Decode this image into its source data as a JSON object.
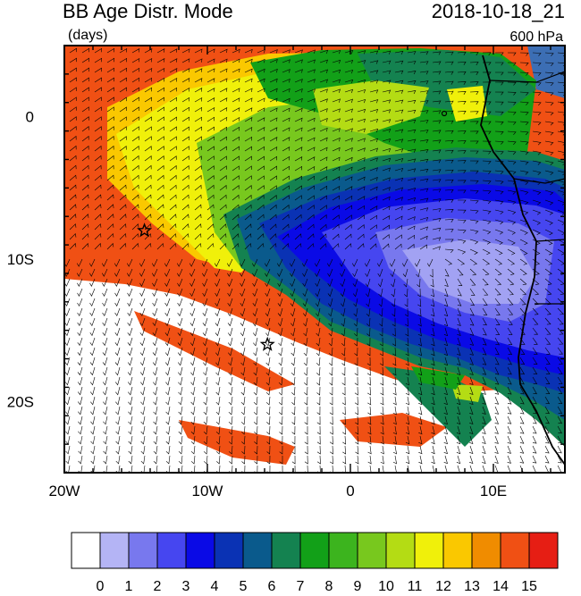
{
  "header": {
    "title": "BB Age Distr. Mode",
    "units": "(days)",
    "datetime": "2018-10-18_21",
    "level": "600 hPa"
  },
  "map": {
    "lon_range": [
      -20,
      15
    ],
    "lat_range": [
      -25,
      5
    ],
    "x_ticks": [
      {
        "lon": -20,
        "label": "20W"
      },
      {
        "lon": -10,
        "label": "10W"
      },
      {
        "lon": 0,
        "label": "0"
      },
      {
        "lon": 10,
        "label": "10E"
      }
    ],
    "y_ticks": [
      {
        "lat": 0,
        "label": "0"
      },
      {
        "lat": -10,
        "label": "10S"
      },
      {
        "lat": -20,
        "label": "20S"
      }
    ],
    "markers": [
      {
        "name": "star-marker-1",
        "lon": -14.4,
        "lat": -8.0
      },
      {
        "name": "star-marker-2",
        "lon": -5.8,
        "lat": -16.0
      }
    ]
  },
  "colorbar": {
    "labels": [
      "0",
      "1",
      "2",
      "3",
      "4",
      "5",
      "6",
      "7",
      "8",
      "9",
      "10",
      "11",
      "12",
      "13",
      "14",
      "15"
    ],
    "colors": [
      "#ffffff",
      "#b4b4f5",
      "#7878ee",
      "#4646f0",
      "#0a0ae6",
      "#0a32b4",
      "#0a5a8c",
      "#148250",
      "#12a018",
      "#3cb41e",
      "#78c81e",
      "#b4dc14",
      "#f0f00a",
      "#fac800",
      "#f08c00",
      "#f05014",
      "#e61e14"
    ]
  },
  "colors": {
    "ocean_plume_deep": "#0a0ae6",
    "ocean_plume_edge": "#0a5a8c",
    "young_aged": "#f05014",
    "mid_aged": "#f0f00a",
    "clean_air": "#ffffff"
  }
}
